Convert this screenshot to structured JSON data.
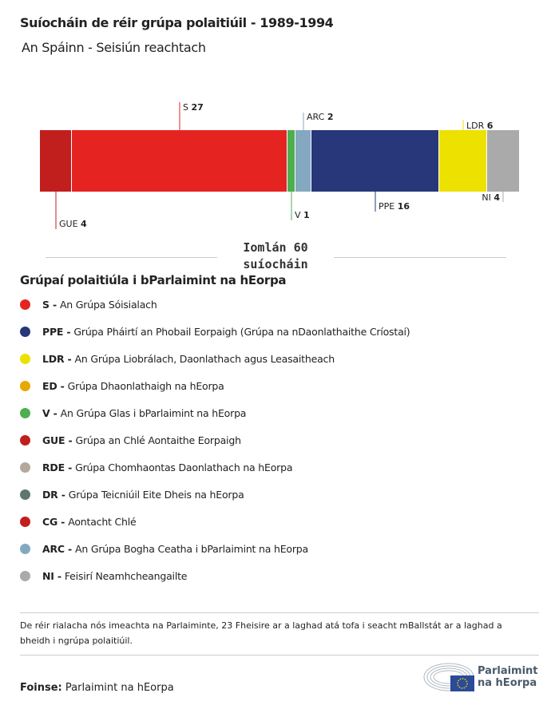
{
  "header": {
    "title": "Suíocháin de réir grúpa polaitiúil - 1989-1994",
    "subtitle": "An Spáinn - Seisiún reachtach"
  },
  "chart_data": {
    "type": "bar",
    "orientation": "horizontal-stacked",
    "categories": [
      "GUE",
      "S",
      "V",
      "ARC",
      "PPE",
      "LDR",
      "NI"
    ],
    "values": [
      4,
      27,
      1,
      2,
      16,
      6,
      4
    ],
    "colors": [
      "#c11e1e",
      "#e52421",
      "#4caf50",
      "#84a8c0",
      "#283779",
      "#ede100",
      "#aaaaaa"
    ],
    "total_label": "Iomlán 60 suíocháin",
    "total": 60
  },
  "legend": {
    "title": "Grúpaí polaitiúla i bParlaimint na hEorpa",
    "items": [
      {
        "code": "S -",
        "label": "An Grúpa Sóisialach",
        "color": "#e52421"
      },
      {
        "code": "PPE -",
        "label": "Grúpa Pháirtí an Phobail Eorpaigh (Grúpa na nDaonlathaithe Críostaí)",
        "color": "#283779"
      },
      {
        "code": "LDR -",
        "label": "An Grúpa Liobrálach, Daonlathach agus Leasaitheach",
        "color": "#ede100"
      },
      {
        "code": "ED -",
        "label": "Grúpa Dhaonlathaigh na hEorpa",
        "color": "#e9a800"
      },
      {
        "code": "V -",
        "label": "An Grúpa Glas i bParlaimint na hEorpa",
        "color": "#4caf50"
      },
      {
        "code": "GUE -",
        "label": "Grúpa an Chlé Aontaithe Eorpaigh",
        "color": "#c11e1e"
      },
      {
        "code": "RDE -",
        "label": "Grúpa Chomhaontas Daonlathach na hEorpa",
        "color": "#b3a99a"
      },
      {
        "code": "DR -",
        "label": "Grúpa Teicniúil Eite Dheis na hEorpa",
        "color": "#5f776e"
      },
      {
        "code": "CG -",
        "label": "Aontacht Chlé",
        "color": "#c41d1d"
      },
      {
        "code": "ARC -",
        "label": "An Grúpa Bogha Ceatha i bParlaimint na hEorpa",
        "color": "#84a8c0"
      },
      {
        "code": "NI -",
        "label": "Feisirí Neamhcheangailte",
        "color": "#aaaaaa"
      }
    ]
  },
  "note": "De réir rialacha nós imeachta na Parlaiminte, 23 Fheisire ar a laghad atá tofa i seacht mBallstát ar a laghad a bheidh i ngrúpa polaitiúil.",
  "source": {
    "label": "Foinse:",
    "value": "Parlaimint na hEorpa"
  },
  "logo": {
    "line1": "Parlaimint",
    "line2": "na hEorpa"
  }
}
